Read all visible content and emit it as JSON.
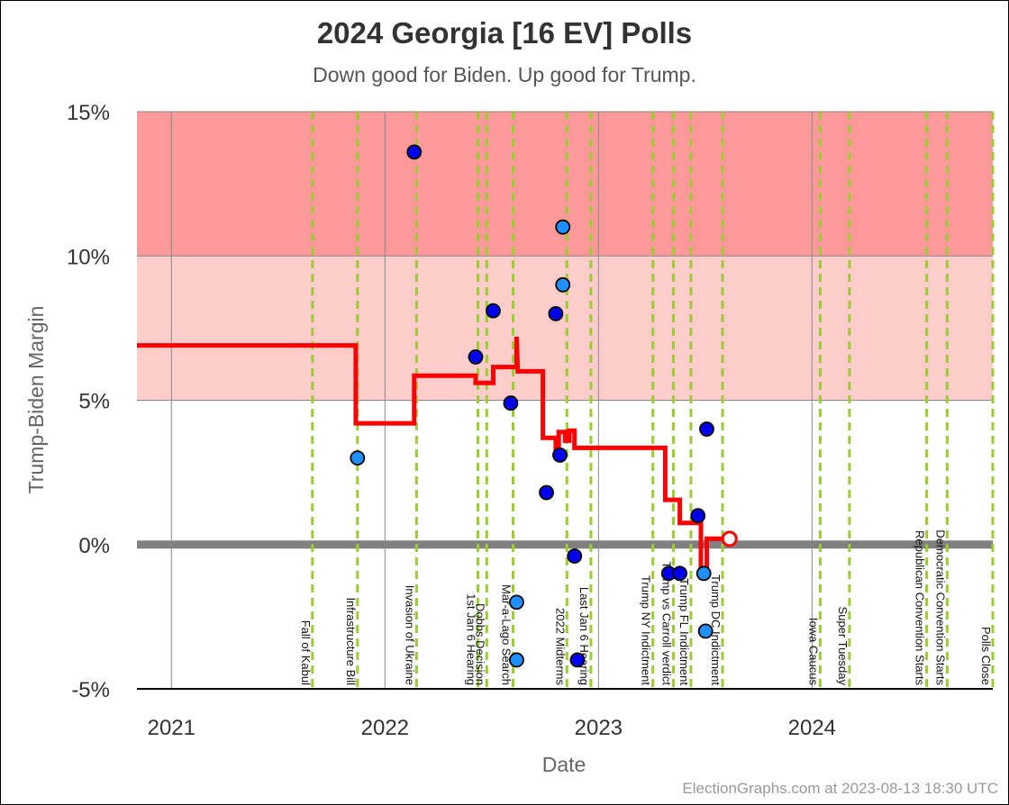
{
  "title": "2024 Georgia [16 EV] Polls",
  "subtitle": "Down good for Biden. Up good for Trump.",
  "credit": "ElectionGraphs.com at 2023-08-13 18:30 UTC",
  "chart_data": {
    "type": "scatter",
    "xlabel": "Date",
    "ylabel": "Trump-Biden Margin",
    "ylim": [
      -5,
      15
    ],
    "xlim": [
      "2020-11-03",
      "2024-11-05"
    ],
    "y_ticks": [
      {
        "value": 15,
        "label": "15%"
      },
      {
        "value": 10,
        "label": "10%"
      },
      {
        "value": 5,
        "label": "5%"
      },
      {
        "value": 0,
        "label": "0%"
      },
      {
        "value": -5,
        "label": "-5%"
      }
    ],
    "x_ticks": [
      {
        "date": "2021-01-01",
        "label": "2021"
      },
      {
        "date": "2022-01-01",
        "label": "2022"
      },
      {
        "date": "2023-01-01",
        "label": "2023"
      },
      {
        "date": "2024-01-01",
        "label": "2024"
      }
    ],
    "bands": [
      {
        "from": 10,
        "to": 15,
        "color": "#ff9999"
      },
      {
        "from": 5,
        "to": 10,
        "color": "#ffcccc"
      }
    ],
    "events": [
      {
        "date": "2021-08-30",
        "label": "Fall of Kabul"
      },
      {
        "date": "2021-11-15",
        "label": "Infrastructure Bill"
      },
      {
        "date": "2022-02-24",
        "label": "Invasion of Ukraine"
      },
      {
        "date": "2022-06-09",
        "label": "1st Jan 6 Hearing"
      },
      {
        "date": "2022-06-24",
        "label": "Dobbs Decision"
      },
      {
        "date": "2022-08-08",
        "label": "Mar-a-Lago Search"
      },
      {
        "date": "2022-11-08",
        "label": "2022 Midterms"
      },
      {
        "date": "2022-12-19",
        "label": "Last Jan 6 Hearing"
      },
      {
        "date": "2023-04-04",
        "label": "Trump NY Indictment"
      },
      {
        "date": "2023-05-09",
        "label": "Trump vs Carroll verdict"
      },
      {
        "date": "2023-06-08",
        "label": "Trump FL Indictment"
      },
      {
        "date": "2023-08-01",
        "label": "Trump DC Indictment"
      },
      {
        "date": "2024-01-15",
        "label": "Iowa Caucus"
      },
      {
        "date": "2024-03-05",
        "label": "Super Tuesday"
      },
      {
        "date": "2024-07-15",
        "label": "Republican Convention Starts"
      },
      {
        "date": "2024-08-19",
        "label": "Democratic Convention Starts"
      },
      {
        "date": "2024-11-05",
        "label": "Polls Close"
      }
    ],
    "series": [
      {
        "kind": "polls",
        "points": [
          {
            "x": "2021-11-15",
            "y": 3.0,
            "color": "#1e90ff"
          },
          {
            "x": "2022-02-20",
            "y": 13.6,
            "color": "#0000ee"
          },
          {
            "x": "2022-06-05",
            "y": 6.5,
            "color": "#0000ee"
          },
          {
            "x": "2022-07-05",
            "y": 8.1,
            "color": "#0000ee"
          },
          {
            "x": "2022-08-04",
            "y": 4.9,
            "color": "#0000ee"
          },
          {
            "x": "2022-08-14",
            "y": -2.0,
            "color": "#1e90ff"
          },
          {
            "x": "2022-08-14",
            "y": -4.0,
            "color": "#1e90ff"
          },
          {
            "x": "2022-10-04",
            "y": 1.8,
            "color": "#0000ee"
          },
          {
            "x": "2022-10-20",
            "y": 8.0,
            "color": "#0000ee"
          },
          {
            "x": "2022-10-27",
            "y": 3.1,
            "color": "#0000ee"
          },
          {
            "x": "2022-11-01",
            "y": 11.0,
            "color": "#1e90ff"
          },
          {
            "x": "2022-11-01",
            "y": 9.0,
            "color": "#1e90ff"
          },
          {
            "x": "2022-11-21",
            "y": -0.4,
            "color": "#0000ee"
          },
          {
            "x": "2022-11-26",
            "y": -4.0,
            "color": "#0000ee"
          },
          {
            "x": "2023-05-01",
            "y": -1.0,
            "color": "#0000ee"
          },
          {
            "x": "2023-05-20",
            "y": -1.0,
            "color": "#0000ee"
          },
          {
            "x": "2023-06-20",
            "y": 1.0,
            "color": "#0000ee"
          },
          {
            "x": "2023-06-30",
            "y": -1.0,
            "color": "#1e90ff"
          },
          {
            "x": "2023-07-03",
            "y": -3.0,
            "color": "#1e90ff"
          },
          {
            "x": "2023-07-05",
            "y": 4.0,
            "color": "#0000ee"
          }
        ]
      },
      {
        "kind": "average",
        "color": "#ff0000",
        "points": [
          {
            "x": "2020-11-03",
            "y": 6.9
          },
          {
            "x": "2021-11-12",
            "y": 6.9
          },
          {
            "x": "2021-11-12",
            "y": 4.2
          },
          {
            "x": "2022-02-20",
            "y": 4.2
          },
          {
            "x": "2022-02-20",
            "y": 5.85
          },
          {
            "x": "2022-06-05",
            "y": 5.85
          },
          {
            "x": "2022-06-05",
            "y": 5.6
          },
          {
            "x": "2022-07-05",
            "y": 5.6
          },
          {
            "x": "2022-07-05",
            "y": 6.15
          },
          {
            "x": "2022-08-14",
            "y": 6.15
          },
          {
            "x": "2022-08-14",
            "y": 7.2
          },
          {
            "x": "2022-08-16",
            "y": 6.0
          },
          {
            "x": "2022-09-28",
            "y": 6.0
          },
          {
            "x": "2022-09-28",
            "y": 3.7
          },
          {
            "x": "2022-10-20",
            "y": 3.7
          },
          {
            "x": "2022-10-20",
            "y": 3.1
          },
          {
            "x": "2022-10-25",
            "y": 3.1
          },
          {
            "x": "2022-10-25",
            "y": 3.9
          },
          {
            "x": "2022-11-05",
            "y": 3.9
          },
          {
            "x": "2022-11-05",
            "y": 3.6
          },
          {
            "x": "2022-11-12",
            "y": 3.6
          },
          {
            "x": "2022-11-12",
            "y": 3.95
          },
          {
            "x": "2022-11-21",
            "y": 3.95
          },
          {
            "x": "2022-11-21",
            "y": 3.35
          },
          {
            "x": "2023-04-25",
            "y": 3.35
          },
          {
            "x": "2023-04-25",
            "y": 1.55
          },
          {
            "x": "2023-05-20",
            "y": 1.55
          },
          {
            "x": "2023-05-20",
            "y": 0.75
          },
          {
            "x": "2023-06-25",
            "y": 0.75
          },
          {
            "x": "2023-06-25",
            "y": -1.0
          },
          {
            "x": "2023-07-05",
            "y": -1.0
          },
          {
            "x": "2023-07-05",
            "y": 0.2
          },
          {
            "x": "2023-08-13",
            "y": 0.2
          }
        ],
        "current": {
          "x": "2023-08-13",
          "y": 0.2
        }
      }
    ]
  }
}
